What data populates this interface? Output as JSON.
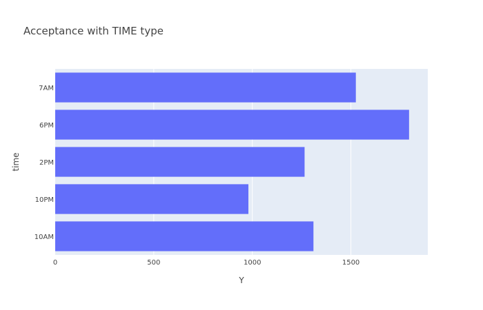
{
  "chart_data": {
    "type": "bar",
    "orientation": "horizontal",
    "title": "Acceptance with TIME type",
    "xlabel": "Y",
    "ylabel": "time",
    "categories": [
      "10AM",
      "10PM",
      "2PM",
      "6PM",
      "7AM"
    ],
    "values": [
      1310,
      980,
      1265,
      1795,
      1525
    ],
    "xlim": [
      0,
      1890
    ],
    "xticks": [
      0,
      500,
      1000,
      1500
    ],
    "grid": true,
    "plot_background": "#e5ecf6",
    "bar_color": "#636efa"
  }
}
